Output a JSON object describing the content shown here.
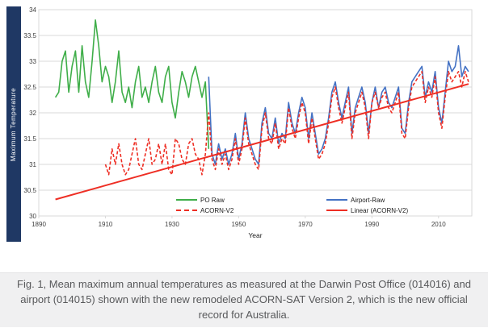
{
  "figure": {
    "caption": "Fig. 1, Mean maximum annual temperatures as measured at the Darwin Post Office (014016) and airport (014015) shown with the new remodeled ACORN-SAT Version 2, which is the new official record for Australia."
  },
  "chart_data": {
    "type": "line",
    "title": "",
    "xlabel": "Year",
    "ylabel": "Maximum Temperature",
    "xlim": [
      1890,
      2020
    ],
    "ylim": [
      30,
      34
    ],
    "x_ticks": [
      "1890",
      "1910",
      "1930",
      "1950",
      "1970",
      "1990",
      "2010"
    ],
    "y_ticks": [
      "30",
      "30.5",
      "31",
      "31.5",
      "32",
      "32.5",
      "33",
      "33.5",
      "34"
    ],
    "grid": "horizontal",
    "legend_position": "bottom-inside",
    "colors": {
      "green": "#3fae49",
      "blue": "#4472c4",
      "red": "#ee2e24",
      "navy": "#1f3864",
      "grid": "#d9d9d9",
      "axis_text": "#404040",
      "caption_bg": "#f0f0f1",
      "caption_text": "#58595b"
    },
    "series": [
      {
        "name": "PO Raw",
        "color_key": "green",
        "style": "solid",
        "width": 1.6,
        "start_year": 1895,
        "values": [
          32.3,
          32.4,
          33.0,
          33.2,
          32.4,
          32.9,
          33.2,
          32.4,
          33.3,
          32.6,
          32.3,
          33.0,
          33.8,
          33.3,
          32.6,
          32.9,
          32.7,
          32.2,
          32.6,
          33.2,
          32.4,
          32.2,
          32.5,
          32.1,
          32.6,
          32.9,
          32.3,
          32.5,
          32.2,
          32.6,
          32.9,
          32.4,
          32.2,
          32.7,
          32.9,
          32.2,
          31.9,
          32.4,
          32.8,
          32.6,
          32.3,
          32.7,
          32.9,
          32.6,
          32.3,
          32.6,
          31.3
        ]
      },
      {
        "name": "Airport-Raw",
        "color_key": "blue",
        "style": "solid",
        "width": 1.6,
        "start_year": 1941,
        "values": [
          32.7,
          31.2,
          31.0,
          31.4,
          31.1,
          31.3,
          31.0,
          31.2,
          31.6,
          31.1,
          31.4,
          32.0,
          31.5,
          31.3,
          31.1,
          31.0,
          31.8,
          32.1,
          31.6,
          31.5,
          31.9,
          31.4,
          31.6,
          31.5,
          32.2,
          31.8,
          31.6,
          32.0,
          32.3,
          32.1,
          31.5,
          32.0,
          31.6,
          31.2,
          31.3,
          31.5,
          31.9,
          32.4,
          32.6,
          32.2,
          31.9,
          32.2,
          32.5,
          31.6,
          32.1,
          32.3,
          32.5,
          32.2,
          31.6,
          32.2,
          32.5,
          32.1,
          32.4,
          32.5,
          32.2,
          32.1,
          32.3,
          32.5,
          31.7,
          31.6,
          32.2,
          32.6,
          32.7,
          32.8,
          32.9,
          32.3,
          32.6,
          32.4,
          32.8,
          32.1,
          31.8,
          32.4,
          33.0,
          32.8,
          32.9,
          33.3,
          32.7,
          32.9,
          32.8
        ]
      },
      {
        "name": "ACORN-V2",
        "color_key": "red",
        "style": "dashed",
        "width": 1.6,
        "start_year": 1910,
        "values": [
          31.0,
          30.8,
          31.3,
          31.0,
          31.4,
          31.0,
          30.8,
          30.9,
          31.2,
          31.5,
          31.0,
          30.9,
          31.2,
          31.5,
          31.0,
          31.1,
          31.4,
          31.0,
          31.4,
          30.9,
          30.8,
          31.5,
          31.4,
          31.1,
          31.0,
          31.4,
          31.5,
          31.2,
          31.1,
          30.8,
          31.2,
          32.0,
          31.1,
          30.9,
          31.3,
          31.0,
          31.2,
          30.9,
          31.1,
          31.5,
          31.0,
          31.3,
          31.9,
          31.4,
          31.2,
          31.0,
          30.9,
          31.7,
          32.0,
          31.5,
          31.4,
          31.8,
          31.3,
          31.5,
          31.4,
          32.1,
          31.7,
          31.5,
          31.9,
          32.2,
          32.0,
          31.4,
          31.9,
          31.5,
          31.1,
          31.2,
          31.4,
          31.8,
          32.3,
          32.5,
          32.1,
          31.8,
          32.1,
          32.4,
          31.5,
          32.0,
          32.2,
          32.4,
          32.1,
          31.5,
          32.2,
          32.4,
          32.1,
          32.3,
          32.4,
          32.1,
          32.0,
          32.2,
          32.4,
          31.6,
          31.5,
          32.1,
          32.5,
          32.6,
          32.7,
          32.8,
          32.2,
          32.5,
          32.3,
          32.7,
          32.0,
          31.7,
          32.3,
          32.8,
          32.6,
          32.7,
          32.8,
          32.5,
          32.8,
          32.6
        ]
      },
      {
        "name": "Linear (ACORN-V2)",
        "color_key": "red",
        "style": "solid",
        "width": 2,
        "points": [
          [
            1895,
            30.32
          ],
          [
            2019,
            32.56
          ]
        ]
      }
    ],
    "legend": [
      {
        "label": "PO Raw",
        "series": 0
      },
      {
        "label": "ACORN-V2",
        "series": 2
      },
      {
        "label": "Airport-Raw",
        "series": 1
      },
      {
        "label": "Linear (ACORN-V2)",
        "series": 3
      }
    ]
  }
}
